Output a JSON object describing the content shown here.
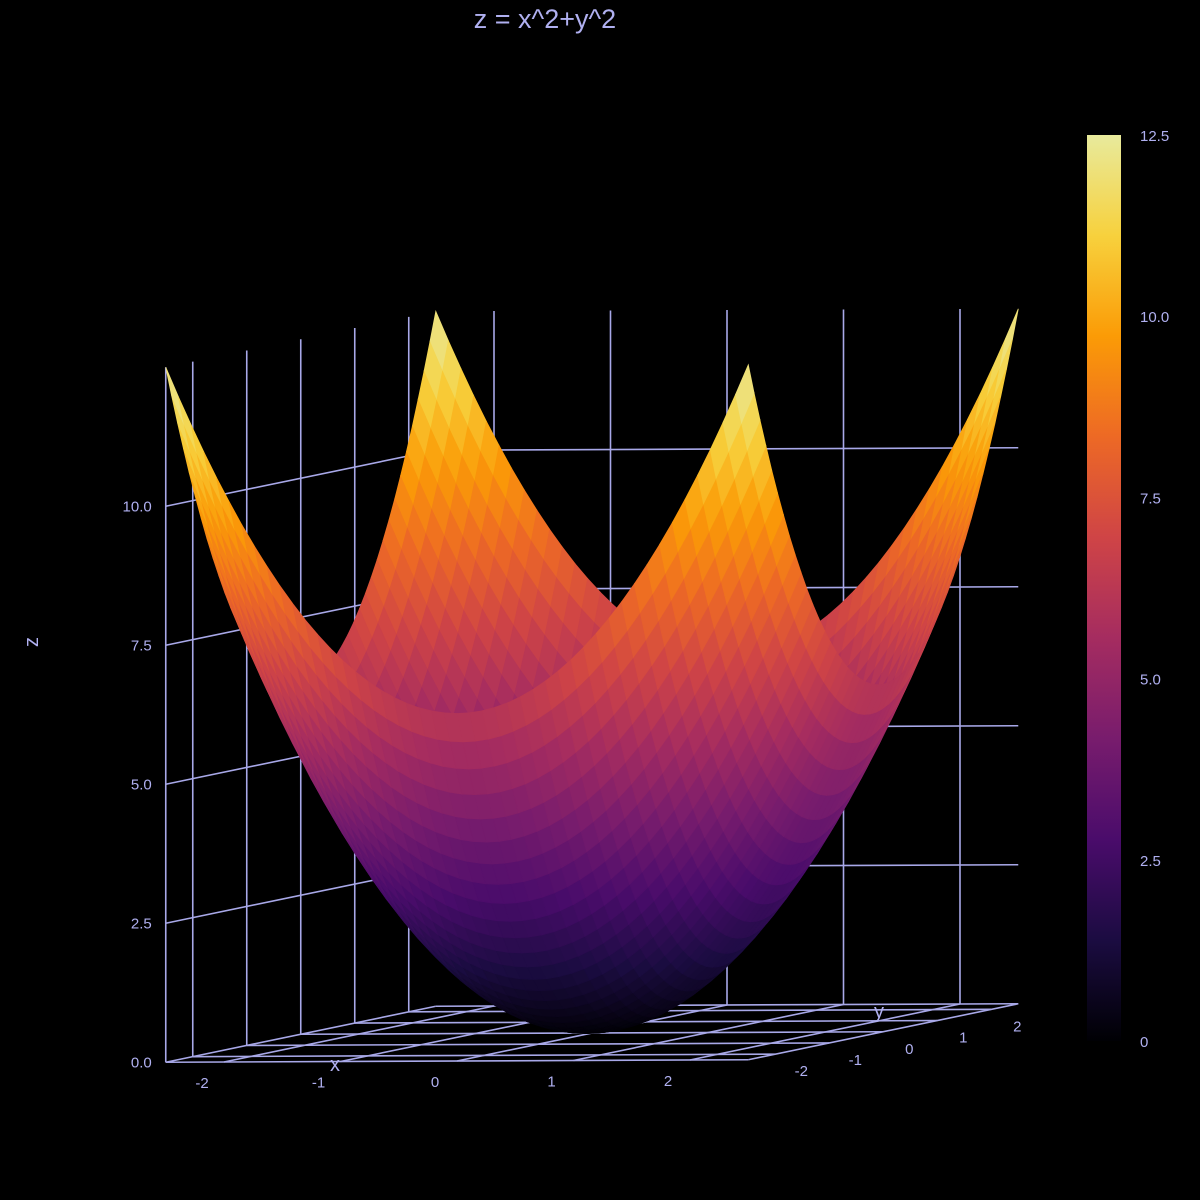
{
  "chart_data": {
    "type": "surface",
    "title": "z = x^2+y^2",
    "function": "z = x^2 + y^2",
    "x": {
      "label": "x",
      "range": [
        -2.5,
        2.5
      ],
      "ticks": [
        -2,
        -1,
        0,
        1,
        2
      ]
    },
    "y": {
      "label": "y",
      "range": [
        -2.5,
        2.5
      ],
      "ticks": [
        -2,
        -1,
        0,
        1,
        2
      ]
    },
    "z": {
      "label": "z",
      "range": [
        0,
        12.5
      ],
      "ticks": [
        "0.0",
        "2.5",
        "5.0",
        "7.5",
        "10.0"
      ]
    },
    "colorbar": {
      "range": [
        0,
        12.5
      ],
      "ticks": [
        "0",
        "2.5",
        "5.0",
        "7.5",
        "10.0",
        "12.5"
      ],
      "colorscale": "inferno"
    },
    "grid": true
  },
  "colors": {
    "background": "#000000",
    "text": "#b0b0f0",
    "grid": "#a8a8e8",
    "colorscale": [
      "#000004",
      "#1b0c41",
      "#4a0c6b",
      "#781c6d",
      "#a52c60",
      "#cf4446",
      "#ed6925",
      "#fb9b06",
      "#f7d13d",
      "#e8ea9c"
    ]
  }
}
